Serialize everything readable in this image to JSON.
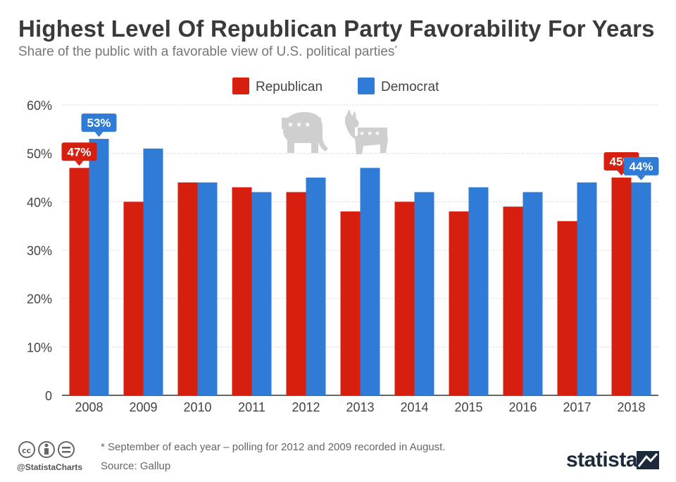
{
  "header": {
    "title": "Highest Level Of Republican Party Favorability For Years",
    "subtitle": "Share of the public with a favorable view of U.S. political parties",
    "subtitle_mark": "*"
  },
  "chart_data": {
    "type": "bar",
    "categories": [
      "2008",
      "2009",
      "2010",
      "2011",
      "2012",
      "2013",
      "2014",
      "2015",
      "2016",
      "2017",
      "2018"
    ],
    "series": [
      {
        "name": "Republican",
        "color": "#d71f0f",
        "values": [
          47,
          40,
          44,
          43,
          42,
          38,
          40,
          38,
          39,
          36,
          45
        ]
      },
      {
        "name": "Democrat",
        "color": "#2f7bd6",
        "values": [
          53,
          51,
          44,
          42,
          45,
          47,
          42,
          43,
          42,
          44,
          44
        ]
      }
    ],
    "ylim": [
      0,
      60
    ],
    "yticks": [
      0,
      10,
      20,
      30,
      40,
      50,
      60
    ],
    "ytick_labels": [
      "0",
      "10%",
      "20%",
      "30%",
      "40%",
      "50%",
      "60%"
    ],
    "callouts": [
      {
        "series": 0,
        "index": 0,
        "label": "47%"
      },
      {
        "series": 1,
        "index": 0,
        "label": "53%"
      },
      {
        "series": 0,
        "index": 10,
        "label": "45%"
      },
      {
        "series": 1,
        "index": 10,
        "label": "44%"
      }
    ],
    "legend_position": "top-center",
    "grid": true,
    "icons": [
      "elephant-icon",
      "donkey-icon"
    ]
  },
  "footer": {
    "note": "* September of each year – polling for 2012 and 2009 recorded in August.",
    "source": "Source: Gallup",
    "handle": "@StatistaCharts",
    "brand": "statista"
  }
}
